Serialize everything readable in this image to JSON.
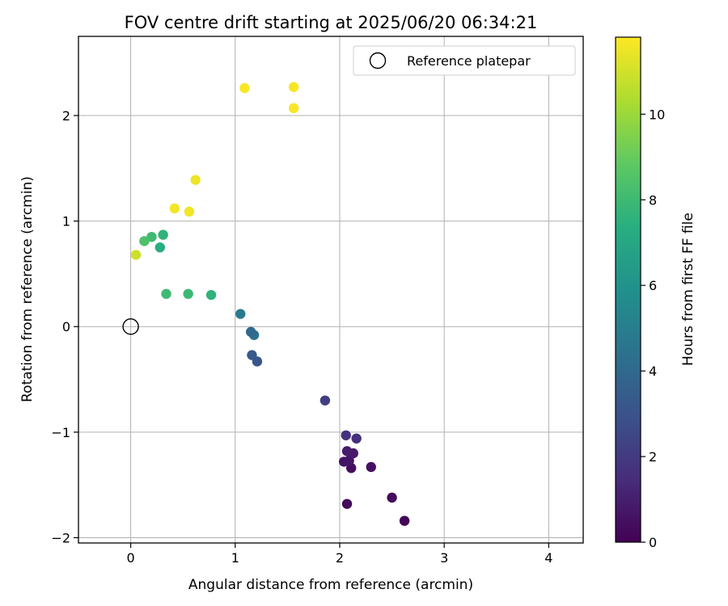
{
  "chart_data": {
    "type": "scatter",
    "title": "FOV centre drift starting at 2025/06/20 06:34:21",
    "xlabel": "Angular distance from reference (arcmin)",
    "ylabel": "Rotation from reference (arcmin)",
    "xlim": [
      -0.5,
      4.33
    ],
    "ylim": [
      -2.05,
      2.75
    ],
    "xticks": [
      0,
      1,
      2,
      3,
      4
    ],
    "yticks": [
      -2,
      -1,
      0,
      1,
      2
    ],
    "grid": true,
    "legend": {
      "placement": "upper right",
      "entries": [
        "Reference platepar"
      ]
    },
    "reference": {
      "x": 0,
      "y": 0
    },
    "colorbar": {
      "label": "Hours from first FF file",
      "colormap": "viridis",
      "range": [
        0,
        11.8
      ],
      "ticks": [
        0,
        2,
        4,
        6,
        8,
        10
      ]
    },
    "points": [
      {
        "x": 2.62,
        "y": -1.84,
        "hours": 0.1
      },
      {
        "x": 2.07,
        "y": -1.68,
        "hours": 0.2
      },
      {
        "x": 2.5,
        "y": -1.62,
        "hours": 0.3
      },
      {
        "x": 2.11,
        "y": -1.34,
        "hours": 0.4
      },
      {
        "x": 2.3,
        "y": -1.33,
        "hours": 0.5
      },
      {
        "x": 2.04,
        "y": -1.28,
        "hours": 0.6
      },
      {
        "x": 2.09,
        "y": -1.27,
        "hours": 0.7
      },
      {
        "x": 2.13,
        "y": -1.2,
        "hours": 0.8
      },
      {
        "x": 2.07,
        "y": -1.18,
        "hours": 0.9
      },
      {
        "x": 2.16,
        "y": -1.06,
        "hours": 1.6
      },
      {
        "x": 2.06,
        "y": -1.03,
        "hours": 1.7
      },
      {
        "x": 1.86,
        "y": -0.7,
        "hours": 2.1
      },
      {
        "x": 1.21,
        "y": -0.33,
        "hours": 3.1
      },
      {
        "x": 1.16,
        "y": -0.27,
        "hours": 3.3
      },
      {
        "x": 1.18,
        "y": -0.08,
        "hours": 4.4
      },
      {
        "x": 1.15,
        "y": -0.05,
        "hours": 4.0
      },
      {
        "x": 1.05,
        "y": 0.12,
        "hours": 4.8
      },
      {
        "x": 0.77,
        "y": 0.3,
        "hours": 7.6
      },
      {
        "x": 0.55,
        "y": 0.31,
        "hours": 7.9
      },
      {
        "x": 0.34,
        "y": 0.31,
        "hours": 8.0
      },
      {
        "x": 0.28,
        "y": 0.75,
        "hours": 7.4
      },
      {
        "x": 0.31,
        "y": 0.87,
        "hours": 7.6
      },
      {
        "x": 0.2,
        "y": 0.85,
        "hours": 8.0
      },
      {
        "x": 0.13,
        "y": 0.81,
        "hours": 8.4
      },
      {
        "x": 0.05,
        "y": 0.68,
        "hours": 10.9
      },
      {
        "x": 0.42,
        "y": 1.12,
        "hours": 11.6
      },
      {
        "x": 0.56,
        "y": 1.09,
        "hours": 11.6
      },
      {
        "x": 0.62,
        "y": 1.39,
        "hours": 11.5
      },
      {
        "x": 1.09,
        "y": 2.26,
        "hours": 11.7
      },
      {
        "x": 1.56,
        "y": 2.27,
        "hours": 11.7
      },
      {
        "x": 1.56,
        "y": 2.07,
        "hours": 11.7
      }
    ]
  }
}
